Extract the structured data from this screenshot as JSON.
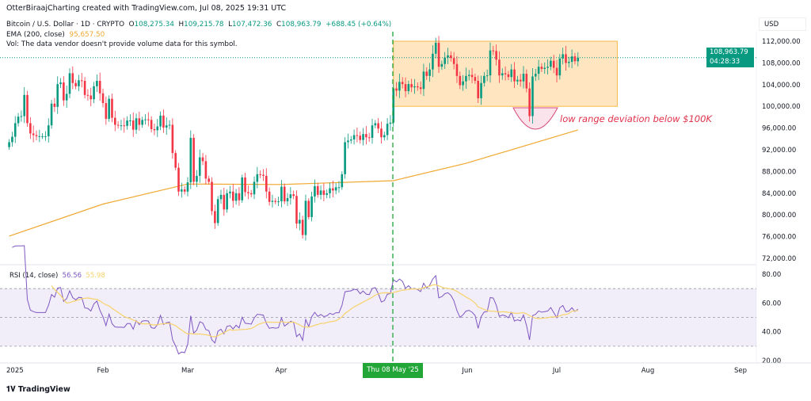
{
  "header": {
    "credit": "OtterBiraajCharting created with TradingView.com, Jul 08, 2025 19:31 UTC"
  },
  "legend": {
    "symbol": "Bitcoin / U.S. Dollar · 1D · CRYPTO",
    "o_label": "O",
    "o": "108,275.34",
    "h_label": "H",
    "h": "109,215.78",
    "l_label": "L",
    "l": "107,472.36",
    "c_label": "C",
    "c": "108,963.79",
    "change": "+688.45 (+0.64%)",
    "ema_label": "EMA (200, close)",
    "ema_value": "95,657.50",
    "vol": "Vol: The data vendor doesn't provide volume data for this symbol."
  },
  "price_scale": {
    "currency": "USD",
    "ticks": [
      "112,000.00",
      "108,000.00",
      "104,000.00",
      "100,000.00",
      "96,000.00",
      "92,000.00",
      "88,000.00",
      "84,000.00",
      "80,000.00",
      "76,000.00",
      "72,000.00"
    ],
    "last_price": "108,963.79",
    "countdown": "04:28:33"
  },
  "rsi": {
    "label": "RSI (14, close)",
    "value": "56.56",
    "ma_value": "55.98",
    "ticks": [
      "80.00",
      "60.00",
      "40.00",
      "20.00"
    ],
    "bands": [
      70,
      50,
      30
    ]
  },
  "time_axis": {
    "labels": [
      "2025",
      "Feb",
      "Mar",
      "Apr",
      "Jun",
      "Jul",
      "Aug",
      "Sep"
    ],
    "crosshair_label": "Thu 08 May '25"
  },
  "annotation": {
    "text": "low range deviation below $100K",
    "range_box": {
      "from": "2025-05-08",
      "to": "2025-07-21",
      "high": 112000,
      "low": 100000
    }
  },
  "colors": {
    "up": "#089981",
    "down": "#f23645",
    "ema": "#f0a830",
    "rsi": "#7e57c2",
    "rsi_ma": "#f7d36b",
    "box": "#ffe0b2",
    "crosshair": "#22a637",
    "annotation": "#e0334b"
  },
  "branding": {
    "logo": "TradingView"
  },
  "chart_data": {
    "type": "candlestick",
    "start_date": "2025-01-01",
    "ylim": [
      70000,
      114000
    ],
    "closes": [
      93400,
      94400,
      96900,
      98100,
      98200,
      102100,
      96900,
      95000,
      94700,
      94500,
      94500,
      94500,
      94500,
      96500,
      100500,
      99900,
      104100,
      104400,
      101100,
      102300,
      106100,
      104300,
      103700,
      104800,
      104700,
      102100,
      102000,
      101300,
      103700,
      104700,
      102400,
      100600,
      97700,
      101400,
      97900,
      96600,
      96500,
      96500,
      96400,
      97400,
      97400,
      95700,
      97800,
      96600,
      97500,
      97600,
      97500,
      95800,
      95600,
      96300,
      98300,
      96100,
      96500,
      96600,
      91400,
      88700,
      84300,
      84700,
      84300,
      86000,
      94200,
      86100,
      87200,
      90600,
      89900,
      86700,
      86100,
      80700,
      78500,
      82900,
      83700,
      81000,
      84000,
      84300,
      82600,
      84000,
      82700,
      86900,
      84200,
      84000,
      83800,
      86100,
      87500,
      87400,
      87200,
      84300,
      82400,
      82600,
      82400,
      82500,
      85200,
      82500,
      83100,
      83800,
      83500,
      78400,
      79100,
      76300,
      82600,
      79600,
      83400,
      85300,
      83700,
      84500,
      83700,
      84000,
      84900,
      84500,
      85100,
      85100,
      87500,
      93400,
      93700,
      93900,
      94700,
      94600,
      93800,
      94900,
      94300,
      94200,
      96500,
      96900,
      95900,
      94300,
      94700,
      96800,
      97000,
      103300,
      102900,
      104500,
      104100,
      102800,
      104100,
      103500,
      103700,
      103500,
      103200,
      106400,
      105600,
      106800,
      109700,
      111700,
      107300,
      107800,
      109000,
      109400,
      108900,
      107800,
      105600,
      103900,
      104600,
      105600,
      105800,
      105400,
      104700,
      101500,
      104300,
      105600,
      105700,
      110300,
      110200,
      108600,
      105700,
      106100,
      105900,
      105400,
      106800,
      104600,
      104900,
      104600,
      106000,
      103300,
      98200,
      105500,
      106000,
      107300,
      106900,
      107100,
      107300,
      108400,
      107100,
      105700,
      108800,
      109600,
      108000,
      108200,
      109200,
      108300,
      108964
    ],
    "ema200": [
      {
        "date": "2025-01-01",
        "value": 76100
      },
      {
        "date": "2025-02-01",
        "value": 82000
      },
      {
        "date": "2025-03-01",
        "value": 85700
      },
      {
        "date": "2025-04-01",
        "value": 85600
      },
      {
        "date": "2025-05-08",
        "value": 86300
      },
      {
        "date": "2025-06-01",
        "value": 89500
      },
      {
        "date": "2025-07-08",
        "value": 95657.5
      }
    ]
  }
}
